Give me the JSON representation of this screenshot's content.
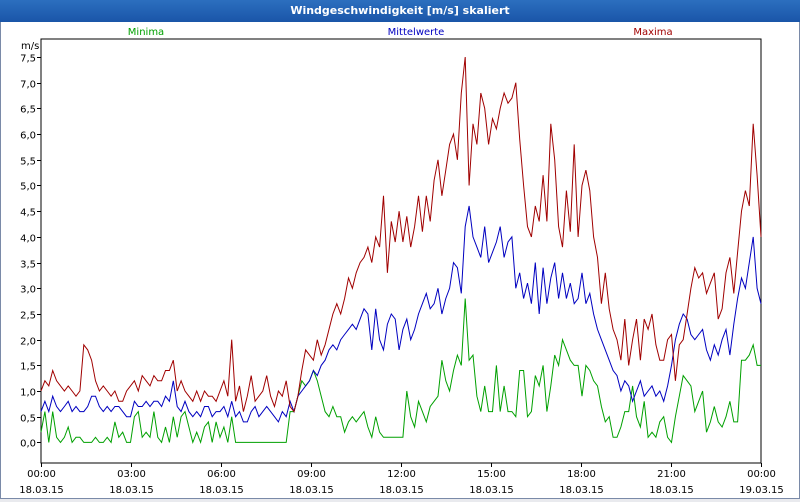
{
  "chart_data": {
    "type": "line",
    "title": "Windgeschwindigkeit [m/s] skaliert",
    "unit_label": "m/s",
    "ylim": [
      -0.4,
      7.85
    ],
    "yticks": [
      0.0,
      0.5,
      1.0,
      1.5,
      2.0,
      2.5,
      3.0,
      3.5,
      4.0,
      4.5,
      5.0,
      5.5,
      6.0,
      6.5,
      7.0,
      7.5
    ],
    "ytick_labels": [
      "0,0",
      "0,5",
      "1,0",
      "1,5",
      "2,0",
      "2,5",
      "3,0",
      "3,5",
      "4,0",
      "4,5",
      "5,0",
      "5,5",
      "6,0",
      "6,5",
      "7,0",
      "7,5"
    ],
    "xlim": [
      0,
      24
    ],
    "xticks": [
      {
        "t": "00:00",
        "d": "18.03.15"
      },
      {
        "t": "03:00",
        "d": "18.03.15"
      },
      {
        "t": "06:00",
        "d": "18.03.15"
      },
      {
        "t": "09:00",
        "d": "18.03.15"
      },
      {
        "t": "12:00",
        "d": "18.03.15"
      },
      {
        "t": "15:00",
        "d": "18.03.15"
      },
      {
        "t": "18:00",
        "d": "18.03.15"
      },
      {
        "t": "21:00",
        "d": "18.03.15"
      },
      {
        "t": "00:00",
        "d": "19.03.15"
      }
    ],
    "series": [
      {
        "name": "Minima",
        "color": "#00a000",
        "values": [
          0.2,
          0.6,
          0.0,
          0.6,
          0.1,
          0.0,
          0.1,
          0.3,
          0.0,
          0.1,
          0.1,
          0.0,
          0.0,
          0.0,
          0.1,
          0.0,
          0.0,
          0.1,
          0.0,
          0.4,
          0.1,
          0.2,
          0.0,
          0.0,
          0.5,
          0.6,
          0.1,
          0.2,
          0.1,
          0.6,
          0.1,
          0.0,
          0.3,
          0.0,
          0.5,
          0.1,
          0.5,
          0.6,
          0.3,
          0.0,
          0.2,
          0.0,
          0.3,
          0.4,
          0.0,
          0.4,
          0.1,
          0.3,
          0.0,
          0.5,
          0.0,
          0.0,
          0.0,
          0.0,
          0.0,
          0.0,
          0.0,
          0.0,
          0.0,
          0.0,
          0.0,
          0.0,
          0.0,
          0.0,
          0.6,
          0.6,
          0.9,
          1.2,
          1.1,
          1.2,
          1.4,
          1.2,
          0.9,
          0.6,
          0.5,
          0.7,
          0.5,
          0.5,
          0.2,
          0.4,
          0.5,
          0.4,
          0.5,
          0.6,
          0.3,
          0.1,
          0.5,
          0.2,
          0.1,
          0.1,
          0.1,
          0.1,
          0.1,
          0.1,
          1.0,
          0.5,
          0.3,
          0.8,
          0.6,
          0.4,
          0.7,
          0.8,
          0.9,
          1.6,
          1.2,
          1.0,
          1.4,
          1.7,
          1.5,
          2.8,
          1.6,
          1.7,
          0.9,
          0.6,
          1.1,
          0.6,
          0.6,
          1.5,
          0.6,
          1.1,
          0.6,
          0.6,
          0.5,
          1.4,
          1.4,
          0.5,
          0.6,
          1.3,
          1.1,
          1.5,
          0.6,
          1.1,
          1.7,
          1.5,
          2.0,
          1.8,
          1.6,
          1.5,
          1.5,
          0.9,
          1.5,
          1.4,
          1.2,
          1.1,
          0.7,
          0.4,
          0.5,
          0.1,
          0.1,
          0.3,
          0.6,
          0.6,
          1.1,
          0.5,
          0.3,
          0.8,
          0.1,
          0.2,
          0.1,
          0.4,
          0.5,
          0.1,
          0.0,
          0.5,
          0.9,
          1.3,
          1.2,
          1.1,
          0.6,
          0.8,
          1.0,
          0.2,
          0.4,
          0.7,
          0.4,
          0.3,
          0.5,
          0.8,
          0.4,
          0.4,
          1.6,
          1.6,
          1.7,
          1.9,
          1.5,
          1.5
        ]
      },
      {
        "name": "Mittelwerte",
        "color": "#0000c0",
        "values": [
          0.6,
          0.8,
          0.6,
          0.9,
          0.7,
          0.6,
          0.7,
          0.8,
          0.6,
          0.7,
          0.6,
          0.6,
          0.7,
          0.9,
          0.9,
          0.7,
          0.6,
          0.7,
          0.6,
          0.7,
          0.7,
          0.6,
          0.5,
          0.5,
          0.8,
          0.7,
          0.7,
          0.8,
          0.7,
          0.8,
          0.8,
          0.7,
          0.9,
          0.8,
          1.2,
          0.7,
          0.6,
          0.8,
          0.6,
          0.5,
          0.6,
          0.5,
          0.7,
          0.7,
          0.5,
          0.6,
          0.6,
          0.7,
          0.5,
          0.8,
          0.5,
          0.6,
          0.4,
          0.4,
          0.6,
          0.7,
          0.5,
          0.6,
          0.7,
          0.6,
          0.5,
          0.4,
          0.6,
          0.5,
          0.8,
          0.6,
          0.9,
          1.0,
          1.1,
          1.2,
          1.4,
          1.3,
          1.5,
          1.6,
          1.8,
          1.9,
          1.8,
          2.0,
          2.1,
          2.2,
          2.3,
          2.2,
          2.4,
          2.6,
          2.5,
          1.8,
          2.6,
          2.0,
          1.8,
          2.3,
          2.5,
          2.4,
          1.8,
          2.2,
          2.4,
          2.0,
          2.2,
          2.5,
          2.7,
          2.9,
          2.6,
          2.7,
          3.0,
          2.5,
          2.8,
          3.0,
          3.5,
          3.4,
          2.9,
          4.2,
          4.6,
          4.0,
          3.8,
          3.6,
          4.2,
          3.5,
          3.7,
          3.9,
          4.2,
          3.6,
          3.9,
          4.0,
          3.0,
          3.3,
          2.8,
          3.1,
          2.7,
          3.5,
          2.5,
          3.4,
          2.7,
          3.2,
          3.5,
          2.8,
          3.3,
          2.8,
          3.1,
          2.7,
          2.8,
          3.3,
          2.7,
          2.9,
          2.5,
          2.2,
          2.0,
          1.8,
          1.6,
          1.4,
          1.3,
          1.0,
          1.2,
          1.1,
          0.8,
          1.0,
          1.2,
          0.9,
          1.0,
          1.1,
          0.9,
          1.0,
          0.8,
          1.1,
          1.5,
          2.0,
          2.3,
          2.5,
          2.4,
          2.1,
          2.0,
          2.1,
          2.2,
          1.8,
          1.6,
          1.9,
          1.7,
          2.0,
          2.2,
          1.7,
          2.3,
          2.8,
          3.2,
          3.0,
          3.5,
          4.0,
          3.0,
          2.7
        ]
      },
      {
        "name": "Maxima",
        "color": "#a00000",
        "values": [
          1.0,
          1.2,
          1.1,
          1.4,
          1.2,
          1.1,
          1.0,
          1.1,
          1.0,
          0.9,
          1.0,
          1.9,
          1.8,
          1.6,
          1.2,
          1.0,
          1.1,
          1.0,
          0.9,
          1.0,
          0.8,
          0.8,
          1.0,
          1.1,
          1.2,
          1.0,
          1.3,
          1.2,
          1.1,
          1.3,
          1.2,
          1.2,
          1.4,
          1.4,
          1.6,
          1.0,
          1.2,
          1.0,
          0.9,
          0.8,
          1.0,
          0.8,
          1.0,
          0.9,
          0.9,
          0.8,
          1.0,
          1.2,
          0.9,
          2.0,
          0.8,
          1.1,
          0.6,
          0.9,
          1.3,
          0.8,
          0.9,
          1.0,
          1.3,
          0.9,
          0.7,
          1.0,
          0.9,
          1.2,
          0.7,
          0.6,
          0.9,
          1.4,
          1.8,
          1.7,
          1.6,
          2.0,
          1.7,
          1.9,
          2.2,
          2.5,
          2.7,
          2.5,
          2.8,
          3.2,
          3.0,
          3.3,
          3.5,
          3.6,
          3.8,
          3.5,
          4.0,
          3.8,
          4.8,
          3.3,
          4.3,
          3.9,
          4.5,
          3.9,
          4.4,
          3.8,
          4.2,
          4.8,
          4.1,
          4.8,
          4.3,
          5.1,
          5.5,
          4.8,
          5.3,
          5.8,
          6.0,
          5.5,
          6.8,
          7.5,
          5.0,
          6.2,
          5.8,
          6.8,
          6.5,
          5.8,
          6.3,
          6.1,
          6.5,
          6.8,
          6.6,
          6.7,
          7.0,
          5.9,
          5.0,
          4.2,
          4.0,
          4.6,
          4.3,
          5.2,
          4.3,
          6.2,
          5.5,
          4.2,
          3.8,
          4.9,
          4.1,
          5.8,
          4.0,
          5.0,
          5.3,
          4.9,
          4.0,
          3.6,
          2.7,
          3.3,
          2.6,
          2.2,
          2.0,
          1.6,
          2.4,
          1.5,
          2.0,
          2.4,
          1.6,
          2.4,
          2.2,
          2.5,
          1.9,
          1.6,
          1.6,
          2.0,
          2.1,
          1.2,
          1.9,
          2.0,
          2.5,
          3.0,
          3.4,
          3.2,
          3.3,
          2.9,
          3.1,
          3.3,
          2.4,
          2.6,
          3.3,
          3.6,
          2.9,
          3.7,
          4.5,
          4.9,
          4.6,
          6.2,
          5.2,
          4.0
        ]
      }
    ]
  }
}
